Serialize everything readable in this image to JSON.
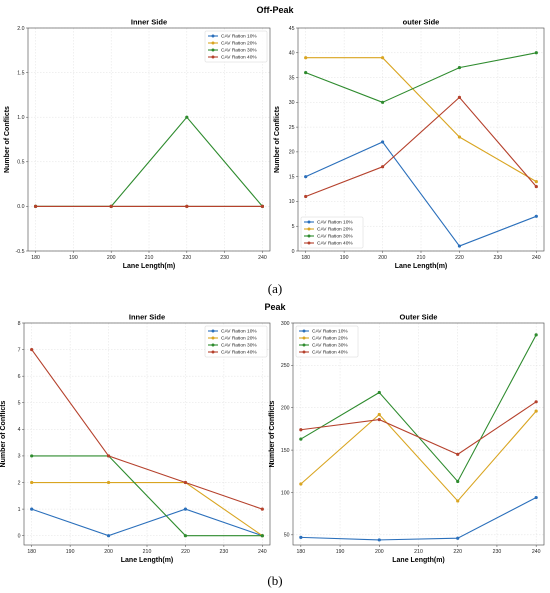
{
  "figure": {
    "caption_a": "(a)",
    "caption_b": "(b)"
  },
  "chart_data": [
    {
      "type": "line",
      "group_title": "Off-Peak",
      "title": "Inner Side",
      "xlabel": "Lane Length(m)",
      "ylabel": "Number of Conflicts",
      "x": [
        180,
        200,
        220,
        240
      ],
      "xlim": [
        178,
        242
      ],
      "ylim": [
        -0.5,
        2.0
      ],
      "xticks": [
        180,
        190,
        200,
        210,
        220,
        230,
        240
      ],
      "yticks": [
        -0.5,
        0.0,
        0.5,
        1.0,
        1.5,
        2.0
      ],
      "ytick_format": 1,
      "grid": true,
      "legend_position": "top-right",
      "series": [
        {
          "name": "CAV Ration 10%",
          "color": "#2a6fbb",
          "values": [
            0,
            0,
            0,
            0
          ]
        },
        {
          "name": "CAV Ration 20%",
          "color": "#d9a521",
          "values": [
            0,
            0,
            0,
            0
          ]
        },
        {
          "name": "CAV Ration 30%",
          "color": "#2e8b2e",
          "values": [
            0,
            0,
            1,
            0
          ]
        },
        {
          "name": "CAV Ration 40%",
          "color": "#b5412c",
          "values": [
            0,
            0,
            0,
            0
          ]
        }
      ]
    },
    {
      "type": "line",
      "title": "outer Side",
      "xlabel": "Lane Length(m)",
      "ylabel": "Number of Conflicts",
      "x": [
        180,
        200,
        220,
        240
      ],
      "xlim": [
        178,
        242
      ],
      "ylim": [
        0,
        45
      ],
      "xticks": [
        180,
        190,
        200,
        210,
        220,
        230,
        240
      ],
      "yticks": [
        0,
        5,
        10,
        15,
        20,
        25,
        30,
        35,
        40,
        45
      ],
      "ytick_format": 0,
      "grid": true,
      "legend_position": "bottom-left",
      "series": [
        {
          "name": "CAV Ration 10%",
          "color": "#2a6fbb",
          "values": [
            15,
            22,
            1,
            7
          ]
        },
        {
          "name": "CAV Ration 20%",
          "color": "#d9a521",
          "values": [
            39,
            39,
            23,
            14
          ]
        },
        {
          "name": "CAV Ration 30%",
          "color": "#2e8b2e",
          "values": [
            36,
            30,
            37,
            40
          ]
        },
        {
          "name": "CAV Ration 40%",
          "color": "#b5412c",
          "values": [
            11,
            17,
            31,
            13
          ]
        }
      ]
    },
    {
      "type": "line",
      "group_title": "Peak",
      "title": "Inner Side",
      "xlabel": "Lane Length(m)",
      "ylabel": "Number of Conflicts",
      "x": [
        180,
        200,
        220,
        240
      ],
      "xlim": [
        178,
        242
      ],
      "ylim": [
        -0.35,
        8
      ],
      "xticks": [
        180,
        190,
        200,
        210,
        220,
        230,
        240
      ],
      "yticks": [
        0,
        1,
        2,
        3,
        4,
        5,
        6,
        7,
        8
      ],
      "ytick_format": 0,
      "grid": true,
      "legend_position": "top-right",
      "series": [
        {
          "name": "CAV Ration 10%",
          "color": "#2a6fbb",
          "values": [
            1,
            0,
            1,
            0
          ]
        },
        {
          "name": "CAV Ration 20%",
          "color": "#d9a521",
          "values": [
            2,
            2,
            2,
            0
          ]
        },
        {
          "name": "CAV Ration 30%",
          "color": "#2e8b2e",
          "values": [
            3,
            3,
            0,
            0
          ]
        },
        {
          "name": "CAV Ration 40%",
          "color": "#b5412c",
          "values": [
            7,
            3,
            2,
            1
          ]
        }
      ]
    },
    {
      "type": "line",
      "title": "Outer Side",
      "xlabel": "Lane Length(m)",
      "ylabel": "Number of Conflicts",
      "x": [
        180,
        200,
        220,
        240
      ],
      "xlim": [
        178,
        242
      ],
      "ylim": [
        38,
        300
      ],
      "xticks": [
        180,
        190,
        200,
        210,
        220,
        230,
        240
      ],
      "yticks": [
        50,
        100,
        150,
        200,
        250,
        300
      ],
      "ytick_format": 0,
      "grid": true,
      "legend_position": "top-left",
      "series": [
        {
          "name": "CAV Ration 10%",
          "color": "#2a6fbb",
          "values": [
            47,
            44,
            46,
            94
          ]
        },
        {
          "name": "CAV Ration 20%",
          "color": "#d9a521",
          "values": [
            110,
            192,
            90,
            196
          ]
        },
        {
          "name": "CAV Ration 30%",
          "color": "#2e8b2e",
          "values": [
            163,
            218,
            113,
            286
          ]
        },
        {
          "name": "CAV Ration 40%",
          "color": "#b5412c",
          "values": [
            174,
            186,
            145,
            207
          ]
        }
      ]
    }
  ]
}
